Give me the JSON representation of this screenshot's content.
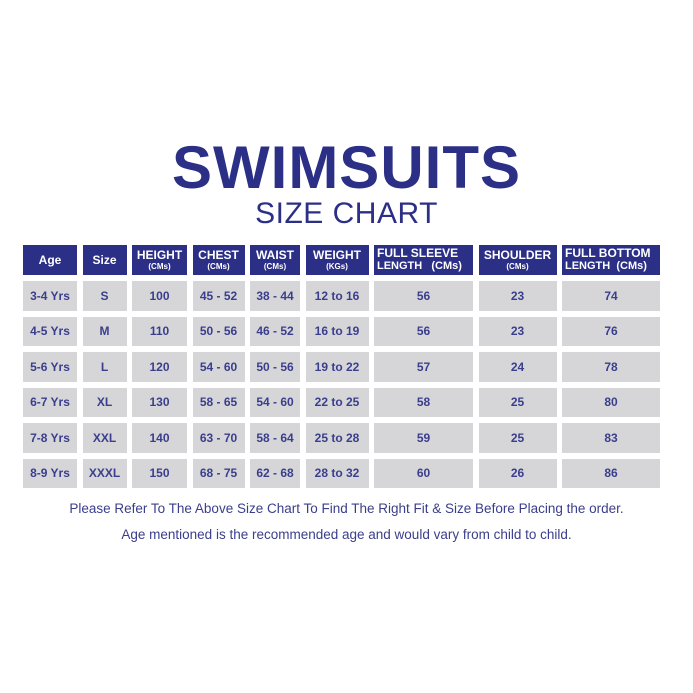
{
  "title": "SWIMSUITS",
  "subtitle": "SIZE CHART",
  "colors": {
    "header_bg": "#2b2f86",
    "cell_bg": "#d6d6d9",
    "text": "#3a3e8c"
  },
  "headers": [
    {
      "label": "Age",
      "unit": ""
    },
    {
      "label": "Size",
      "unit": ""
    },
    {
      "label": "HEIGHT",
      "unit": "(CMs)"
    },
    {
      "label": "CHEST",
      "unit": "(CMs)"
    },
    {
      "label": "WAIST",
      "unit": "(CMs)"
    },
    {
      "label": "WEIGHT",
      "unit": "(KGs)"
    },
    {
      "label": "FULL SLEEVE",
      "unit": "LENGTH   (CMs)"
    },
    {
      "label": "SHOULDER",
      "unit": "(CMs)"
    },
    {
      "label": "FULL BOTTOM",
      "unit": "LENGTH  (CMs)"
    }
  ],
  "rows": [
    [
      "3-4 Yrs",
      "S",
      "100",
      "45 - 52",
      "38 - 44",
      "12 to 16",
      "56",
      "23",
      "74"
    ],
    [
      "4-5 Yrs",
      "M",
      "110",
      "50 - 56",
      "46 - 52",
      "16 to 19",
      "56",
      "23",
      "76"
    ],
    [
      "5-6 Yrs",
      "L",
      "120",
      "54 - 60",
      "50 - 56",
      "19 to 22",
      "57",
      "24",
      "78"
    ],
    [
      "6-7 Yrs",
      "XL",
      "130",
      "58 - 65",
      "54 - 60",
      "22 to 25",
      "58",
      "25",
      "80"
    ],
    [
      "7-8 Yrs",
      "XXL",
      "140",
      "63 - 70",
      "58 - 64",
      "25 to 28",
      "59",
      "25",
      "83"
    ],
    [
      "8-9 Yrs",
      "XXXL",
      "150",
      "68 - 75",
      "62 - 68",
      "28 to 32",
      "60",
      "26",
      "86"
    ]
  ],
  "notes": [
    "Please  Refer To The Above Size Chart To Find The Right Fit & Size Before Placing the order.",
    "Age mentioned is the recommended age and would vary from child to child."
  ]
}
